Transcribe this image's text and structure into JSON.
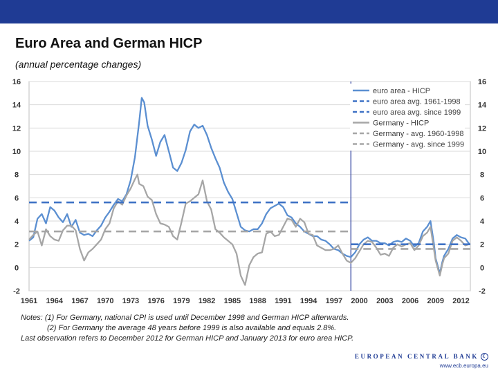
{
  "header": {
    "title": "Euro Area and German HICP",
    "subtitle": "(annual percentage changes)"
  },
  "chart_data": {
    "type": "line",
    "title": "Euro Area and German HICP",
    "subtitle": "(annual percentage changes)",
    "ylim": [
      -2,
      16
    ],
    "y_ticks": [
      "-2",
      "0",
      "2",
      "4",
      "6",
      "8",
      "10",
      "12",
      "14",
      "16"
    ],
    "xlim": [
      1961,
      2013.1
    ],
    "x_ticks": [
      "1961",
      "1964",
      "1967",
      "1970",
      "1973",
      "1976",
      "1979",
      "1982",
      "1985",
      "1988",
      "1991",
      "1994",
      "1997",
      "2000",
      "2003",
      "2006",
      "2009",
      "2012"
    ],
    "vertical_marker_x": 1999,
    "legend_position": "top-right",
    "legend": [
      {
        "label": "euro area - HICP",
        "color": "#5b8fd1",
        "dash": "solid"
      },
      {
        "label": "euro area avg. 1961-1998",
        "color": "#3f72c5",
        "dash": "dashed"
      },
      {
        "label": "euro area avg. since 1999",
        "color": "#3f72c5",
        "dash": "dashed"
      },
      {
        "label": "Germany - HICP",
        "color": "#a6a6a6",
        "dash": "solid"
      },
      {
        "label": "Germany - avg. 1960-1998",
        "color": "#a6a6a6",
        "dash": "dashed"
      },
      {
        "label": "Germany - avg. since 1999",
        "color": "#a6a6a6",
        "dash": "dashed"
      }
    ],
    "series": [
      {
        "name": "euro area - HICP",
        "color": "#5b8fd1",
        "style": "solid",
        "points": [
          [
            1961,
            2.3
          ],
          [
            1961.5,
            2.6
          ],
          [
            1962,
            4.2
          ],
          [
            1962.5,
            4.6
          ],
          [
            1963,
            3.8
          ],
          [
            1963.5,
            5.2
          ],
          [
            1964,
            4.9
          ],
          [
            1964.5,
            4.3
          ],
          [
            1965,
            3.9
          ],
          [
            1965.5,
            4.6
          ],
          [
            1966,
            3.5
          ],
          [
            1966.5,
            4.1
          ],
          [
            1967,
            3.0
          ],
          [
            1967.5,
            2.8
          ],
          [
            1968,
            2.9
          ],
          [
            1968.5,
            2.7
          ],
          [
            1969,
            3.2
          ],
          [
            1969.5,
            3.6
          ],
          [
            1970,
            4.3
          ],
          [
            1970.5,
            4.8
          ],
          [
            1971,
            5.4
          ],
          [
            1971.5,
            5.9
          ],
          [
            1972,
            5.7
          ],
          [
            1972.5,
            6.3
          ],
          [
            1973,
            7.5
          ],
          [
            1973.5,
            9.5
          ],
          [
            1974,
            12.5
          ],
          [
            1974.3,
            14.6
          ],
          [
            1974.6,
            14.2
          ],
          [
            1975,
            12.2
          ],
          [
            1975.5,
            11.0
          ],
          [
            1976,
            9.6
          ],
          [
            1976.5,
            10.8
          ],
          [
            1977,
            11.4
          ],
          [
            1977.5,
            10.0
          ],
          [
            1978,
            8.6
          ],
          [
            1978.5,
            8.3
          ],
          [
            1979,
            9.0
          ],
          [
            1979.5,
            10.1
          ],
          [
            1980,
            11.7
          ],
          [
            1980.5,
            12.3
          ],
          [
            1981,
            12.0
          ],
          [
            1981.5,
            12.2
          ],
          [
            1982,
            11.4
          ],
          [
            1982.5,
            10.3
          ],
          [
            1983,
            9.4
          ],
          [
            1983.5,
            8.6
          ],
          [
            1984,
            7.3
          ],
          [
            1984.5,
            6.5
          ],
          [
            1985,
            5.9
          ],
          [
            1985.5,
            4.7
          ],
          [
            1986,
            3.5
          ],
          [
            1986.5,
            3.2
          ],
          [
            1987,
            3.1
          ],
          [
            1987.5,
            3.3
          ],
          [
            1988,
            3.3
          ],
          [
            1988.5,
            3.8
          ],
          [
            1989,
            4.6
          ],
          [
            1989.5,
            5.1
          ],
          [
            1990,
            5.3
          ],
          [
            1990.5,
            5.5
          ],
          [
            1991,
            5.2
          ],
          [
            1991.5,
            4.5
          ],
          [
            1992,
            4.3
          ],
          [
            1992.5,
            3.8
          ],
          [
            1993,
            3.5
          ],
          [
            1993.5,
            3.1
          ],
          [
            1994,
            2.9
          ],
          [
            1994.5,
            2.7
          ],
          [
            1995,
            2.7
          ],
          [
            1995.5,
            2.4
          ],
          [
            1996,
            2.3
          ],
          [
            1996.5,
            2.0
          ],
          [
            1997,
            1.6
          ],
          [
            1997.5,
            1.5
          ],
          [
            1998,
            1.2
          ],
          [
            1998.5,
            1.0
          ],
          [
            1999,
            0.9
          ],
          [
            1999.5,
            1.3
          ],
          [
            2000,
            2.0
          ],
          [
            2000.5,
            2.4
          ],
          [
            2001,
            2.6
          ],
          [
            2001.5,
            2.3
          ],
          [
            2002,
            2.3
          ],
          [
            2002.5,
            2.1
          ],
          [
            2003,
            2.1
          ],
          [
            2003.5,
            1.9
          ],
          [
            2004,
            2.2
          ],
          [
            2004.5,
            2.3
          ],
          [
            2005,
            2.2
          ],
          [
            2005.5,
            2.5
          ],
          [
            2006,
            2.3
          ],
          [
            2006.5,
            1.8
          ],
          [
            2007,
            2.1
          ],
          [
            2007.5,
            3.1
          ],
          [
            2008,
            3.5
          ],
          [
            2008.4,
            4.0
          ],
          [
            2008.8,
            2.1
          ],
          [
            2009,
            0.8
          ],
          [
            2009.5,
            -0.5
          ],
          [
            2009.8,
            0.5
          ],
          [
            2010,
            1.0
          ],
          [
            2010.5,
            1.6
          ],
          [
            2011,
            2.5
          ],
          [
            2011.5,
            2.8
          ],
          [
            2012,
            2.6
          ],
          [
            2012.5,
            2.5
          ],
          [
            2013,
            2.0
          ]
        ]
      },
      {
        "name": "Germany - HICP",
        "color": "#a6a6a6",
        "style": "solid",
        "points": [
          [
            1961,
            2.4
          ],
          [
            1961.5,
            2.8
          ],
          [
            1962,
            3.1
          ],
          [
            1962.5,
            1.9
          ],
          [
            1963,
            3.3
          ],
          [
            1963.5,
            2.7
          ],
          [
            1964,
            2.4
          ],
          [
            1964.5,
            2.3
          ],
          [
            1965,
            3.2
          ],
          [
            1965.5,
            3.6
          ],
          [
            1966,
            3.6
          ],
          [
            1966.5,
            3.2
          ],
          [
            1967,
            1.6
          ],
          [
            1967.5,
            0.6
          ],
          [
            1968,
            1.3
          ],
          [
            1968.5,
            1.6
          ],
          [
            1969,
            2.0
          ],
          [
            1969.5,
            2.4
          ],
          [
            1970,
            3.3
          ],
          [
            1970.5,
            3.8
          ],
          [
            1971,
            5.1
          ],
          [
            1971.5,
            5.7
          ],
          [
            1972,
            5.4
          ],
          [
            1972.5,
            6.2
          ],
          [
            1973,
            6.8
          ],
          [
            1973.5,
            7.6
          ],
          [
            1973.8,
            8.0
          ],
          [
            1974,
            7.2
          ],
          [
            1974.5,
            7.0
          ],
          [
            1975,
            6.1
          ],
          [
            1975.5,
            5.8
          ],
          [
            1976,
            4.6
          ],
          [
            1976.5,
            3.8
          ],
          [
            1977,
            3.7
          ],
          [
            1977.5,
            3.5
          ],
          [
            1978,
            2.7
          ],
          [
            1978.5,
            2.4
          ],
          [
            1979,
            3.9
          ],
          [
            1979.5,
            5.5
          ],
          [
            1980,
            5.7
          ],
          [
            1980.5,
            6.0
          ],
          [
            1981,
            6.3
          ],
          [
            1981.5,
            7.5
          ],
          [
            1982,
            5.7
          ],
          [
            1982.5,
            5.0
          ],
          [
            1983,
            3.3
          ],
          [
            1983.5,
            3.0
          ],
          [
            1984,
            2.6
          ],
          [
            1984.5,
            2.3
          ],
          [
            1985,
            2.0
          ],
          [
            1985.5,
            1.2
          ],
          [
            1986,
            -0.7
          ],
          [
            1986.5,
            -1.5
          ],
          [
            1987,
            0.2
          ],
          [
            1987.5,
            0.9
          ],
          [
            1988,
            1.2
          ],
          [
            1988.5,
            1.3
          ],
          [
            1989,
            2.9
          ],
          [
            1989.5,
            3.1
          ],
          [
            1990,
            2.7
          ],
          [
            1990.5,
            2.8
          ],
          [
            1991,
            3.5
          ],
          [
            1991.5,
            4.2
          ],
          [
            1992,
            4.1
          ],
          [
            1992.5,
            3.5
          ],
          [
            1993,
            4.2
          ],
          [
            1993.5,
            3.9
          ],
          [
            1994,
            2.9
          ],
          [
            1994.5,
            2.8
          ],
          [
            1995,
            1.9
          ],
          [
            1995.5,
            1.7
          ],
          [
            1996,
            1.5
          ],
          [
            1996.5,
            1.5
          ],
          [
            1997,
            1.6
          ],
          [
            1997.5,
            1.9
          ],
          [
            1998,
            1.2
          ],
          [
            1998.5,
            0.6
          ],
          [
            1999,
            0.4
          ],
          [
            1999.5,
            0.8
          ],
          [
            2000,
            1.4
          ],
          [
            2000.5,
            2.0
          ],
          [
            2001,
            2.3
          ],
          [
            2001.5,
            2.2
          ],
          [
            2002,
            1.7
          ],
          [
            2002.5,
            1.1
          ],
          [
            2003,
            1.2
          ],
          [
            2003.5,
            1.0
          ],
          [
            2004,
            1.7
          ],
          [
            2004.5,
            2.0
          ],
          [
            2005,
            1.8
          ],
          [
            2005.5,
            2.0
          ],
          [
            2006,
            2.1
          ],
          [
            2006.5,
            1.5
          ],
          [
            2007,
            1.9
          ],
          [
            2007.5,
            2.7
          ],
          [
            2008,
            3.0
          ],
          [
            2008.4,
            3.5
          ],
          [
            2008.8,
            1.6
          ],
          [
            2009,
            0.6
          ],
          [
            2009.5,
            -0.7
          ],
          [
            2009.8,
            0.3
          ],
          [
            2010,
            0.8
          ],
          [
            2010.5,
            1.2
          ],
          [
            2011,
            2.3
          ],
          [
            2011.5,
            2.6
          ],
          [
            2012,
            2.3
          ],
          [
            2012.5,
            1.9
          ],
          [
            2012.95,
            2.0
          ]
        ]
      },
      {
        "name": "euro area avg. 1961-1998",
        "color": "#3f72c5",
        "style": "dashed",
        "points": [
          [
            1961,
            5.6
          ],
          [
            1999,
            5.6
          ]
        ]
      },
      {
        "name": "euro area avg. since 1999",
        "color": "#3f72c5",
        "style": "dashed",
        "points": [
          [
            1999,
            2.0
          ],
          [
            2013.1,
            2.0
          ]
        ]
      },
      {
        "name": "Germany - avg. 1960-1998",
        "color": "#a6a6a6",
        "style": "dashed",
        "points": [
          [
            1961,
            3.1
          ],
          [
            1999,
            3.1
          ]
        ]
      },
      {
        "name": "Germany - avg. since 1999",
        "color": "#a6a6a6",
        "style": "dashed",
        "points": [
          [
            1999,
            1.6
          ],
          [
            2013.1,
            1.6
          ]
        ]
      }
    ]
  },
  "notes": {
    "line1": "Notes: (1) For Germany, national CPI is used until December 1998 and German HICP afterwards.",
    "line2": "(2) For Germany the average 48 years before 1999 is also available and equals 2.8%.",
    "line3": "Last observation refers to December 2012 for German HICP and January 2013 for euro area HICP."
  },
  "footer": {
    "bank_name": "EUROPEAN CENTRAL BANK",
    "url": "www.ecb.europa.eu",
    "brand_color": "#1f3b94"
  }
}
